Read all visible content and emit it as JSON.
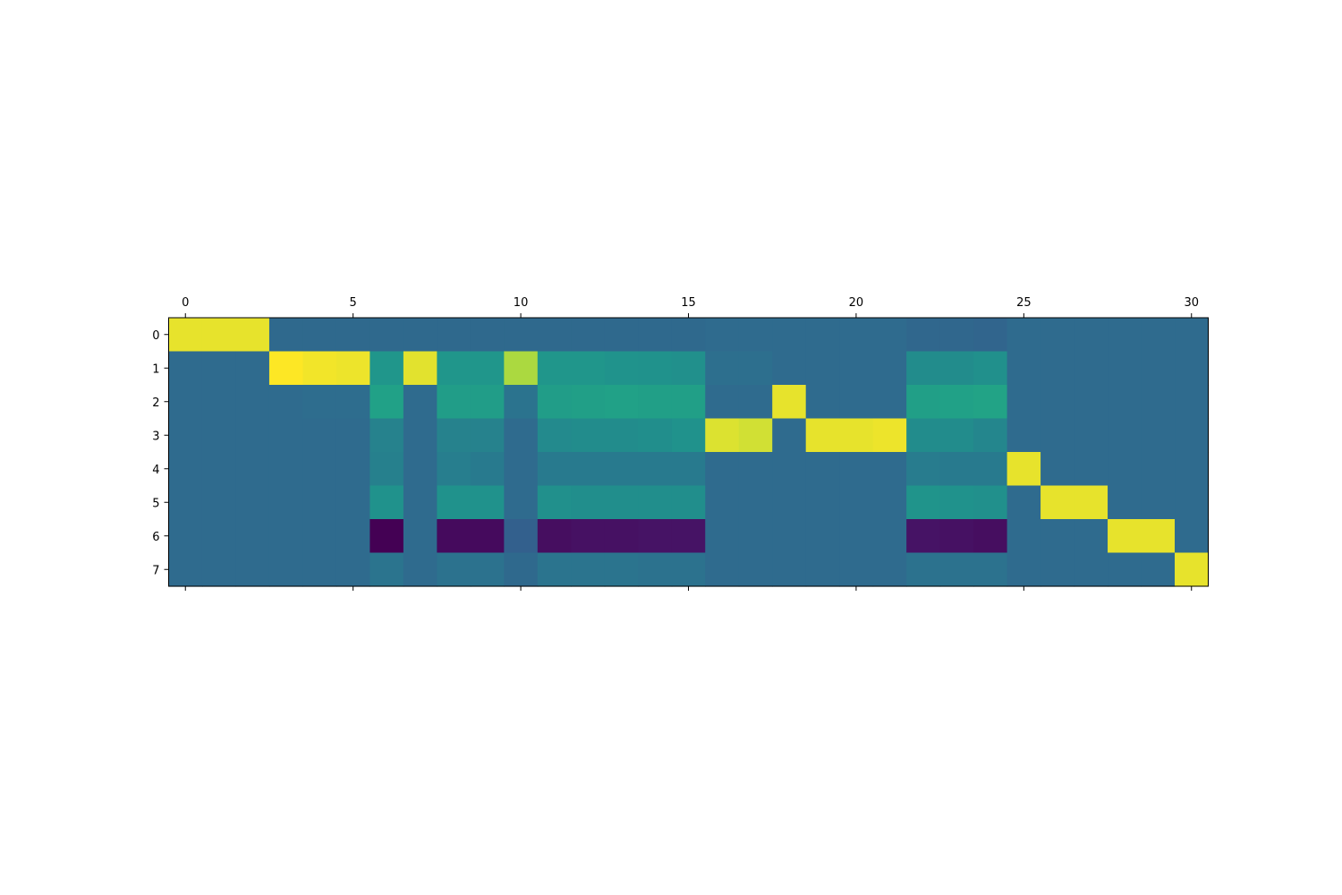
{
  "chart_data": {
    "type": "heatmap",
    "title": "",
    "xlabel": "",
    "ylabel": "",
    "colormap": "viridis",
    "color_range": [
      -1,
      1
    ],
    "n_rows": 8,
    "n_cols": 31,
    "x_ticks": [
      0,
      5,
      10,
      15,
      20,
      25,
      30
    ],
    "y_ticks": [
      0,
      1,
      2,
      3,
      4,
      5,
      6,
      7
    ],
    "x_tick_position": "top",
    "grid": false,
    "values": [
      [
        0.96,
        0.96,
        0.96,
        -0.14,
        -0.14,
        -0.14,
        -0.14,
        -0.14,
        -0.14,
        -0.14,
        -0.14,
        -0.14,
        -0.14,
        -0.14,
        -0.14,
        -0.14,
        -0.12,
        -0.12,
        -0.12,
        -0.12,
        -0.12,
        -0.12,
        -0.16,
        -0.16,
        -0.18,
        -0.12,
        -0.12,
        -0.12,
        -0.12,
        -0.12,
        -0.12
      ],
      [
        -0.12,
        -0.12,
        -0.12,
        1.0,
        0.98,
        0.97,
        0.3,
        0.95,
        0.3,
        0.3,
        0.85,
        0.3,
        0.3,
        0.27,
        0.26,
        0.24,
        -0.08,
        -0.08,
        -0.12,
        -0.12,
        -0.12,
        -0.12,
        0.2,
        0.2,
        0.24,
        -0.12,
        -0.12,
        -0.12,
        -0.12,
        -0.12,
        -0.12
      ],
      [
        -0.12,
        -0.12,
        -0.12,
        -0.12,
        -0.1,
        -0.1,
        0.42,
        -0.12,
        0.38,
        0.38,
        -0.05,
        0.38,
        0.4,
        0.42,
        0.4,
        0.4,
        -0.12,
        -0.12,
        0.96,
        -0.12,
        -0.12,
        -0.12,
        0.4,
        0.42,
        0.45,
        -0.12,
        -0.12,
        -0.12,
        -0.12,
        -0.12,
        -0.12
      ],
      [
        -0.12,
        -0.12,
        -0.12,
        -0.12,
        -0.12,
        -0.12,
        0.1,
        -0.12,
        0.1,
        0.1,
        -0.12,
        0.18,
        0.2,
        0.2,
        0.22,
        0.26,
        0.94,
        0.92,
        -0.12,
        0.96,
        0.96,
        0.97,
        0.2,
        0.2,
        0.14,
        -0.12,
        -0.12,
        -0.12,
        -0.12,
        -0.12,
        -0.12
      ],
      [
        -0.12,
        -0.12,
        -0.12,
        -0.12,
        -0.12,
        -0.12,
        0.08,
        -0.12,
        0.06,
        0.02,
        -0.12,
        0.02,
        0.02,
        0.02,
        0.02,
        0.02,
        -0.12,
        -0.12,
        -0.12,
        -0.12,
        -0.12,
        -0.12,
        0.04,
        0.02,
        0.02,
        0.96,
        -0.12,
        -0.12,
        -0.12,
        -0.12,
        -0.12
      ],
      [
        -0.12,
        -0.12,
        -0.12,
        -0.12,
        -0.12,
        -0.12,
        0.26,
        -0.12,
        0.26,
        0.26,
        -0.12,
        0.24,
        0.22,
        0.22,
        0.22,
        0.22,
        -0.12,
        -0.12,
        -0.12,
        -0.12,
        -0.12,
        -0.12,
        0.28,
        0.26,
        0.24,
        -0.12,
        0.96,
        0.96,
        -0.12,
        -0.12,
        -0.12
      ],
      [
        -0.12,
        -0.12,
        -0.12,
        -0.12,
        -0.12,
        -0.12,
        -1.0,
        -0.12,
        -0.93,
        -0.93,
        -0.22,
        -0.9,
        -0.88,
        -0.88,
        -0.86,
        -0.86,
        -0.12,
        -0.12,
        -0.12,
        -0.12,
        -0.12,
        -0.12,
        -0.86,
        -0.88,
        -0.9,
        -0.12,
        -0.12,
        -0.12,
        0.96,
        0.96,
        -0.12
      ],
      [
        -0.12,
        -0.12,
        -0.12,
        -0.12,
        -0.12,
        -0.12,
        -0.04,
        -0.12,
        -0.06,
        -0.06,
        -0.14,
        -0.04,
        -0.04,
        -0.04,
        -0.06,
        -0.06,
        -0.12,
        -0.12,
        -0.12,
        -0.12,
        -0.12,
        -0.12,
        -0.06,
        -0.06,
        -0.06,
        -0.12,
        -0.12,
        -0.12,
        -0.12,
        -0.12,
        0.96
      ]
    ]
  }
}
